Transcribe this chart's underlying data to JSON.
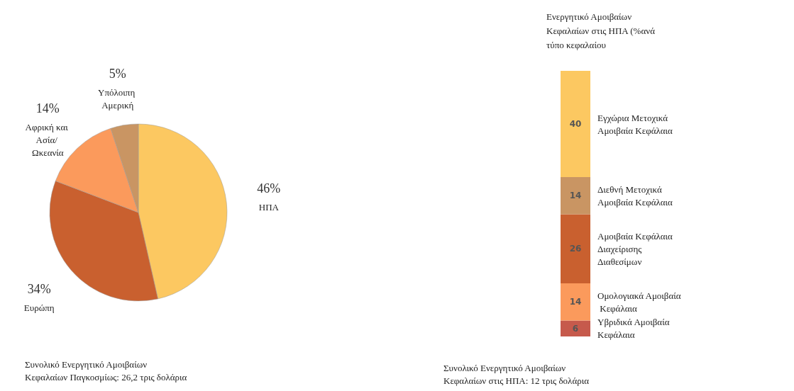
{
  "chart_data": [
    {
      "type": "pie",
      "categories": [
        "ΗΠΑ",
        "Ευρώπη",
        "Αφρική και Ασία/ Ωκεανία",
        "Υπόλοιπη Αμερική"
      ],
      "values": [
        46,
        34,
        14,
        5
      ],
      "colors": [
        "#fcc861",
        "#c9602f",
        "#fb9a5c",
        "#c99563"
      ],
      "value_labels": [
        "46%",
        "34%",
        "14%",
        "5%"
      ],
      "annotations": [
        "Συνολικό Ενεργητικό Αμοιβαίων Κεφαλαίων Παγκοσμίως: 26,2 τρις δολάρια"
      ],
      "legend": false
    },
    {
      "type": "bar",
      "stacked": true,
      "title": "Ενεργητικό Αμοιβαίων Κεφαλαίων στις ΗΠΑ (%ανά τύπο κεφαλαίου",
      "categories": [
        null
      ],
      "data_labels": true,
      "legend": false,
      "series": [
        {
          "name": "Υβριδικά Αμοιβαία Κεφάλαια",
          "color": "#c65a4c",
          "values": [
            6
          ]
        },
        {
          "name": "Ομολογιακά Αμοιβαία Κεφάλαια",
          "color": "#fb9a5c",
          "values": [
            14
          ]
        },
        {
          "name": "Αμοιβαία Κεφάλαια Διαχείρισης Διαθεσίμων",
          "color": "#c9602f",
          "values": [
            26
          ]
        },
        {
          "name": "Διεθνή Μετοχικά Αμοιβαία Κεφάλαια",
          "color": "#c99563",
          "values": [
            14
          ]
        },
        {
          "name": "Εγχώρια Μετοχικά Αμοιβαία Κεφάλαια",
          "color": "#fcc861",
          "values": [
            40
          ]
        }
      ],
      "annotations": [
        "Συνολικό Ενεργητικό Αμοιβαίων Κεφαλαίων στις ΗΠΑ: 12 τρις δολάρια"
      ]
    }
  ]
}
